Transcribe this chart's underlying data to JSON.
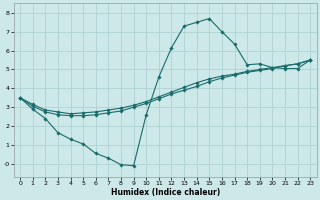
{
  "xlabel": "Humidex (Indice chaleur)",
  "background_color": "#cce8e8",
  "grid_color": "#aacece",
  "line_color": "#1a6b6b",
  "xlim": [
    -0.5,
    23.5
  ],
  "ylim": [
    -0.7,
    8.5
  ],
  "xticks": [
    0,
    1,
    2,
    3,
    4,
    5,
    6,
    7,
    8,
    9,
    10,
    11,
    12,
    13,
    14,
    15,
    16,
    17,
    18,
    19,
    20,
    21,
    22,
    23
  ],
  "yticks": [
    0,
    1,
    2,
    3,
    4,
    5,
    6,
    7,
    8
  ],
  "ytick_labels": [
    "-0",
    "1",
    "2",
    "3",
    "4",
    "5",
    "6",
    "7",
    "8"
  ],
  "line1_x": [
    0,
    1,
    2,
    3,
    4,
    5,
    6,
    7,
    8,
    9,
    10,
    11,
    12,
    13,
    14,
    15,
    16,
    17,
    18,
    19,
    20,
    21,
    22,
    23
  ],
  "line1_y": [
    3.5,
    2.9,
    2.4,
    1.65,
    1.3,
    1.05,
    0.55,
    0.3,
    -0.05,
    -0.1,
    2.6,
    4.6,
    6.15,
    7.3,
    7.5,
    7.7,
    7.0,
    6.35,
    5.25,
    5.3,
    5.1,
    5.05,
    5.05,
    5.5
  ],
  "line2_x": [
    0,
    1,
    2,
    3,
    4,
    5,
    6,
    7,
    8,
    9,
    10,
    11,
    12,
    13,
    14,
    15,
    16,
    17,
    18,
    19,
    20,
    21,
    22,
    23
  ],
  "line2_y": [
    3.5,
    3.15,
    2.85,
    2.75,
    2.65,
    2.7,
    2.75,
    2.85,
    2.95,
    3.1,
    3.3,
    3.55,
    3.8,
    4.05,
    4.3,
    4.5,
    4.65,
    4.75,
    4.9,
    5.0,
    5.1,
    5.2,
    5.3,
    5.5
  ],
  "line3_x": [
    0,
    1,
    2,
    3,
    4,
    5,
    6,
    7,
    8,
    9,
    10,
    11,
    12,
    13,
    14,
    15,
    16,
    17,
    18,
    19,
    20,
    21,
    22,
    23
  ],
  "line3_y": [
    3.5,
    3.05,
    2.75,
    2.6,
    2.55,
    2.55,
    2.6,
    2.7,
    2.8,
    3.0,
    3.2,
    3.45,
    3.7,
    3.9,
    4.1,
    4.35,
    4.55,
    4.7,
    4.85,
    4.95,
    5.05,
    5.2,
    5.3,
    5.5
  ]
}
